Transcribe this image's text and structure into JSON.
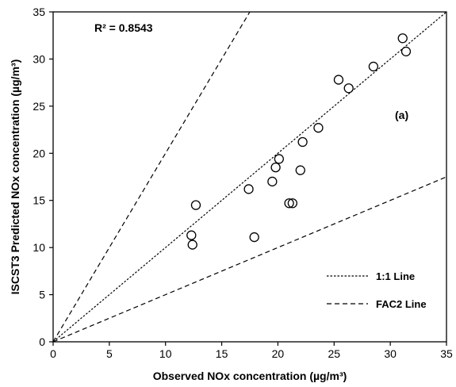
{
  "chart_data": {
    "type": "scatter",
    "title": "",
    "xlabel": "Observed NOx concentration (µg/m³)",
    "ylabel": "ISCST3 Predicted NOx concentration (µg/m³)",
    "xlim": [
      0,
      35
    ],
    "ylim": [
      0,
      35
    ],
    "xticks": [
      0,
      5,
      10,
      15,
      20,
      25,
      30,
      35
    ],
    "yticks": [
      0,
      5,
      10,
      15,
      20,
      25,
      30,
      35
    ],
    "grid": false,
    "legend_position": "bottom-right",
    "annotations": [
      {
        "text": "R² = 0.8543"
      },
      {
        "text": "(a)"
      }
    ],
    "points": [
      {
        "x": 12.3,
        "y": 11.3
      },
      {
        "x": 12.4,
        "y": 10.3
      },
      {
        "x": 12.7,
        "y": 14.5
      },
      {
        "x": 17.4,
        "y": 16.2
      },
      {
        "x": 17.9,
        "y": 11.1
      },
      {
        "x": 19.5,
        "y": 17.0
      },
      {
        "x": 19.8,
        "y": 18.5
      },
      {
        "x": 20.1,
        "y": 19.4
      },
      {
        "x": 21.0,
        "y": 14.7
      },
      {
        "x": 21.3,
        "y": 14.7
      },
      {
        "x": 22.0,
        "y": 18.2
      },
      {
        "x": 22.2,
        "y": 21.2
      },
      {
        "x": 23.6,
        "y": 22.7
      },
      {
        "x": 25.4,
        "y": 27.8
      },
      {
        "x": 26.3,
        "y": 26.9
      },
      {
        "x": 28.5,
        "y": 29.2
      },
      {
        "x": 31.1,
        "y": 32.2
      },
      {
        "x": 31.4,
        "y": 30.8
      }
    ],
    "lines": [
      {
        "name": "1:1 Line",
        "style": "dotted",
        "points": [
          [
            0,
            0
          ],
          [
            35,
            35
          ]
        ]
      },
      {
        "name": "FAC2 Line",
        "style": "dashed",
        "points": [
          [
            0,
            0
          ],
          [
            35,
            17.5
          ]
        ]
      },
      {
        "name": "FAC2 Line",
        "style": "dashed",
        "points": [
          [
            0,
            0
          ],
          [
            17.5,
            35
          ]
        ]
      }
    ],
    "legend": [
      {
        "label": "1:1 Line",
        "style": "dotted"
      },
      {
        "label": "FAC2 Line",
        "style": "dashed"
      }
    ]
  }
}
